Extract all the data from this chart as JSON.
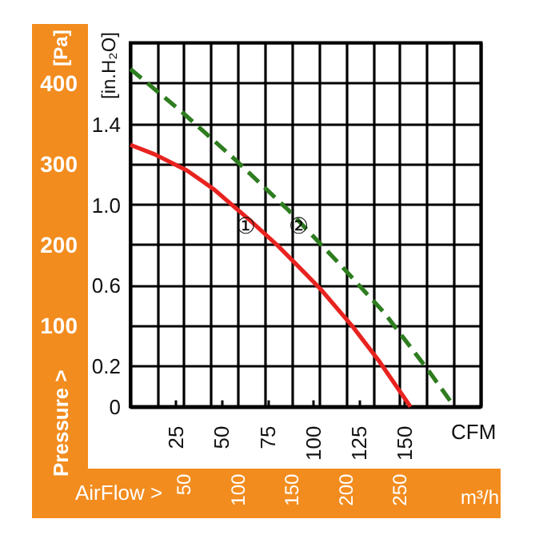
{
  "chart_data": {
    "type": "line",
    "xlabel": "CFM",
    "x2label": "m³/h",
    "ylabel": "[in.H₂O]",
    "y2label": "[Pa]",
    "annotations": [
      "Pressure >",
      "AirFlow >",
      {
        "text": "①",
        "x": 63,
        "y": 0.89
      },
      {
        "text": "②",
        "x": 92,
        "y": 0.89
      }
    ],
    "xlim": [
      0,
      191.5
    ],
    "xticks": [
      25,
      50,
      75,
      100,
      125,
      150
    ],
    "x2lim": [
      0,
      325
    ],
    "x2ticks": [
      {
        "value": 0,
        "label": null
      },
      {
        "value": 25,
        "label": null
      },
      50,
      {
        "value": 75,
        "label": null
      },
      100,
      {
        "value": 125,
        "label": null
      },
      150,
      {
        "value": 175,
        "label": null
      },
      200,
      {
        "value": 225,
        "label": null
      },
      250,
      {
        "value": 275,
        "label": null
      },
      {
        "value": 300,
        "label": null
      },
      {
        "value": 325,
        "label": null
      }
    ],
    "ylim": [
      0,
      1.807
    ],
    "yticks": [
      0,
      0.2,
      0.6,
      {
        "value": 1,
        "label": "1.0"
      },
      1.4
    ],
    "y2lim": [
      0,
      450
    ],
    "y2ticks": [
      {
        "value": 0,
        "label": null
      },
      {
        "value": 50,
        "label": null
      },
      100,
      {
        "value": 150,
        "label": null
      },
      200,
      {
        "value": 250,
        "label": null
      },
      300,
      {
        "value": 350,
        "label": null
      },
      400,
      {
        "value": 450,
        "label": null
      }
    ],
    "grid": true,
    "marker": "none",
    "series": [
      {
        "color": "#e8231f",
        "line_style": "solid",
        "x": [
          0,
          13.3,
          30.9,
          45.4,
          66,
          80.5,
          95.2,
          104,
          121.5,
          136,
          153
        ],
        "values": [
          1.3,
          1.253,
          1.173,
          1.081,
          0.92,
          0.8,
          0.665,
          0.583,
          0.397,
          0.225,
          0
        ]
      },
      {
        "color": "#2e7d1f",
        "line_style": "dashed",
        "x": [
          0,
          27.9,
          57.2,
          86.4,
          115.6,
          139,
          162.4,
          177
        ],
        "values": [
          1.677,
          1.465,
          1.227,
          0.975,
          0.696,
          0.463,
          0.185,
          0
        ]
      }
    ]
  }
}
